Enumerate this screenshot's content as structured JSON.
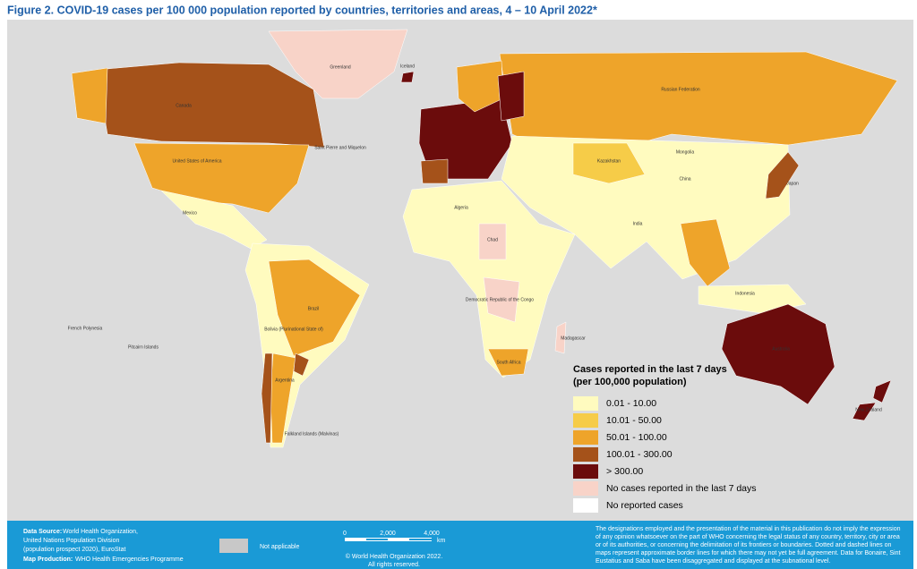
{
  "title": "Figure 2. COVID-19 cases per 100 000 population reported by countries, territories and areas, 4 – 10 April 2022*",
  "legend": {
    "title_line1": "Cases reported in the last 7 days",
    "title_line2": "(per 100,000 population)",
    "items": [
      {
        "label": "0.01 - 10.00",
        "color": "#fffbbf"
      },
      {
        "label": "10.01 - 50.00",
        "color": "#f6cc48"
      },
      {
        "label": "50.01 - 100.00",
        "color": "#eea42a"
      },
      {
        "label": "100.01 - 300.00",
        "color": "#a5521a"
      },
      {
        "label": "> 300.00",
        "color": "#6b0c0c"
      },
      {
        "label": "No cases reported in the last 7 days",
        "color": "#f8d3c8"
      },
      {
        "label": "No reported cases",
        "color": "#ffffff"
      }
    ]
  },
  "map_labels": [
    "Greenland",
    "Canada",
    "United States of America",
    "Mexico",
    "Brazil",
    "Argentina",
    "Russian Federation",
    "China",
    "Mongolia",
    "India",
    "Algeria",
    "Chad",
    "Australia",
    "Iceland",
    "Saint Pierre and Miquelon",
    "Bolivia (Plurinational State of)",
    "Falkland Islands (Malvinas)",
    "Democratic Republic of the Congo",
    "Madagascar",
    "South Africa",
    "Japan",
    "Indonesia",
    "Kazakhstan",
    "New Zealand",
    "French Polynesia",
    "Pitcairn Islands"
  ],
  "footer": {
    "source_label": "Data Source:",
    "source_line1": "World Health Organization,",
    "source_line2": "United Nations Population Division",
    "source_line3": "(population prospect 2020), EuroStat",
    "production_label": "Map Production:",
    "production": "WHO Health Emergencies Programme",
    "not_applicable": "Not applicable",
    "scale": [
      "0",
      "2,000",
      "4,000"
    ],
    "scale_unit": "km",
    "copyright_line1": "© World Health Organization 2022.",
    "copyright_line2": "All rights reserved.",
    "disclaimer": [
      "The designations employed and the presentation of the material in this publication do not imply the expression",
      "of any opinion whatsoever on the part of WHO concerning the legal status of any country, territory, city or area",
      "or of its authorities, or concerning the delimitation of its frontiers or boundaries. Dotted and dashed lines on",
      "maps represent approximate border lines for which there may not yet be full agreement. Data for Bonaire, Sint",
      "Eustatius and Saba have been disaggregated and displayed at the subnational level."
    ]
  }
}
